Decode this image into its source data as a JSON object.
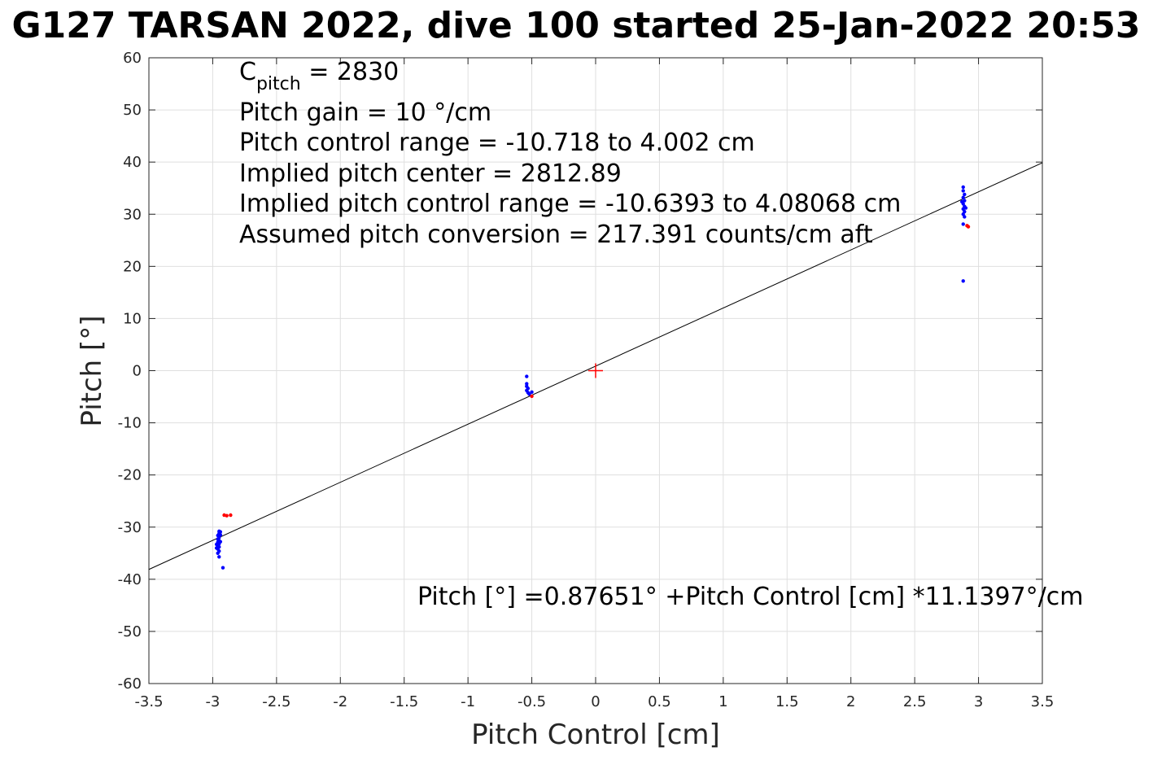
{
  "chart_data": {
    "type": "scatter",
    "title": "G127 TARSAN 2022, dive 100 started 25-Jan-2022 20:53",
    "xlabel": "Pitch Control [cm]",
    "ylabel": "Pitch [°]",
    "xlim": [
      -3.5,
      3.5
    ],
    "ylim": [
      -60,
      60
    ],
    "x_ticks": [
      -3.5,
      -3,
      -2.5,
      -2,
      -1.5,
      -1,
      -0.5,
      0,
      0.5,
      1,
      1.5,
      2,
      2.5,
      3,
      3.5
    ],
    "y_ticks": [
      -60,
      -50,
      -40,
      -30,
      -20,
      -10,
      0,
      10,
      20,
      30,
      40,
      50,
      60
    ],
    "x_tick_labels": [
      "-3.5",
      "-3",
      "-2.5",
      "-2",
      "-1.5",
      "-1",
      "-0.5",
      "0",
      "0.5",
      "1",
      "1.5",
      "2",
      "2.5",
      "3",
      "3.5"
    ],
    "y_tick_labels": [
      "-60",
      "-50",
      "-40",
      "-30",
      "-20",
      "-10",
      "0",
      "10",
      "20",
      "30",
      "40",
      "50",
      "60"
    ],
    "grid": true,
    "colors": {
      "series_blue": "#0000ff",
      "series_red": "#ff0000",
      "fit_line": "#000000",
      "grid": "#dfdfdf"
    },
    "series": [
      {
        "color": "#0000ff",
        "points": [
          [
            -2.95,
            -30.8
          ],
          [
            -2.95,
            -31.2
          ],
          [
            -2.96,
            -31.6
          ],
          [
            -2.95,
            -32.0
          ],
          [
            -2.96,
            -32.3
          ],
          [
            -2.95,
            -32.6
          ],
          [
            -2.96,
            -32.9
          ],
          [
            -2.95,
            -33.2
          ],
          [
            -2.96,
            -33.5
          ],
          [
            -2.95,
            -33.8
          ],
          [
            -2.96,
            -34.2
          ],
          [
            -2.95,
            -34.6
          ],
          [
            -2.96,
            -35.0
          ],
          [
            -2.94,
            -31.5
          ],
          [
            -2.94,
            -32.8
          ],
          [
            -2.97,
            -33.3
          ],
          [
            -2.97,
            -34.0
          ],
          [
            -2.94,
            -30.9
          ],
          [
            -2.95,
            -35.7
          ],
          [
            -2.92,
            -37.8
          ],
          [
            -0.54,
            -1.1
          ],
          [
            -0.54,
            -2.5
          ],
          [
            -0.54,
            -3.0
          ],
          [
            -0.53,
            -3.4
          ],
          [
            -0.54,
            -3.8
          ],
          [
            -0.53,
            -4.2
          ],
          [
            -0.52,
            -4.5
          ],
          [
            -0.5,
            -4.1
          ],
          [
            2.88,
            35.2
          ],
          [
            2.88,
            34.5
          ],
          [
            2.89,
            33.8
          ],
          [
            2.88,
            33.2
          ],
          [
            2.89,
            32.6
          ],
          [
            2.88,
            32.0
          ],
          [
            2.89,
            31.5
          ],
          [
            2.88,
            31.0
          ],
          [
            2.89,
            30.5
          ],
          [
            2.88,
            30.0
          ],
          [
            2.89,
            29.5
          ],
          [
            2.9,
            31.2
          ],
          [
            2.87,
            32.4
          ],
          [
            2.88,
            28.1
          ],
          [
            2.88,
            17.2
          ]
        ]
      },
      {
        "color": "#ff0000",
        "points": [
          [
            -2.91,
            -27.7
          ],
          [
            -2.89,
            -27.8
          ],
          [
            -2.86,
            -27.7
          ],
          [
            -0.5,
            -4.9
          ],
          [
            2.91,
            27.8
          ],
          [
            2.92,
            27.6
          ]
        ]
      }
    ],
    "fit_line": {
      "intercept": 0.87651,
      "slope": 11.1397
    },
    "center_marker": {
      "x": 0,
      "y": 0,
      "color": "#ff0000"
    },
    "annotations": {
      "c_pitch_main": "C",
      "c_pitch_sub": "pitch",
      "c_pitch_rest": " = 2830",
      "line2": "Pitch gain = 10 °/cm",
      "line3": "Pitch control range = -10.718 to 4.002 cm",
      "line4": "Implied pitch center = 2812.89",
      "line5": "Implied pitch control range = -10.6393 to 4.08068 cm",
      "line6": "Assumed pitch conversion = 217.391 counts/cm aft",
      "equation": "Pitch [°] =0.87651° +Pitch Control [cm] *11.1397°/cm"
    }
  }
}
